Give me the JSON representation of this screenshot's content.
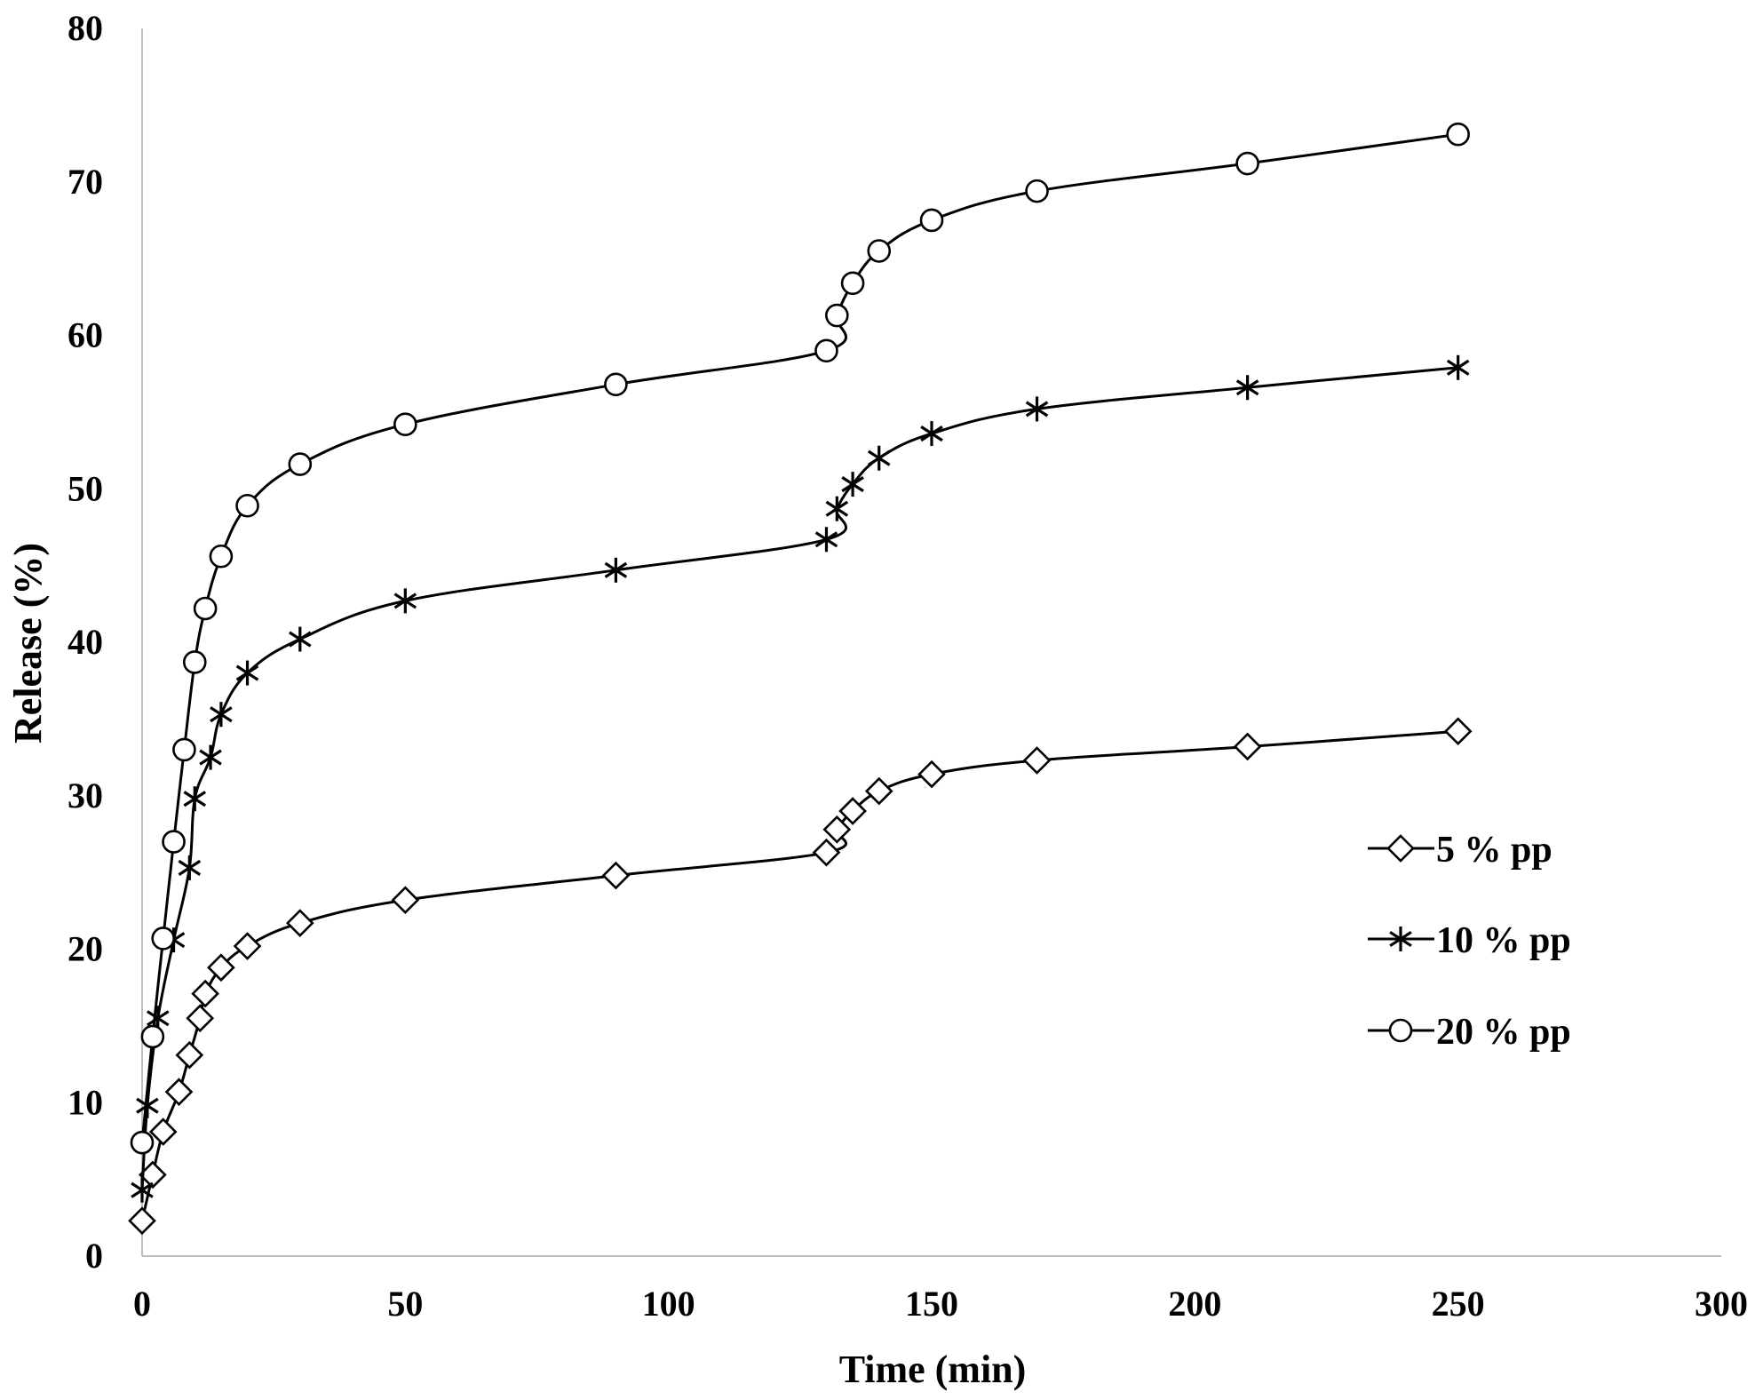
{
  "chart_data": {
    "type": "line",
    "title": "",
    "xlabel": "Time (min)",
    "ylabel": "Release (%)",
    "xlim": [
      0,
      300
    ],
    "ylim": [
      0,
      80
    ],
    "xticks": [
      "0",
      "50",
      "100",
      "150",
      "200",
      "250",
      "300"
    ],
    "yticks": [
      "0",
      "10",
      "20",
      "30",
      "40",
      "50",
      "60",
      "70",
      "80"
    ],
    "grid": false,
    "legend_position": "right",
    "series": [
      {
        "name": "5 % pp",
        "marker": "diamond",
        "color": "#000000",
        "x": [
          0,
          2,
          4,
          7,
          9,
          11,
          12,
          15,
          20,
          30,
          50,
          90,
          130,
          132,
          135,
          140,
          150,
          170,
          210,
          250
        ],
        "y": [
          2.3,
          5.3,
          8.1,
          10.7,
          13.1,
          15.5,
          17.1,
          18.8,
          20.2,
          21.7,
          23.2,
          24.8,
          26.3,
          27.8,
          29.0,
          30.3,
          31.4,
          32.3,
          33.2,
          34.2
        ]
      },
      {
        "name": "10 % pp",
        "marker": "star",
        "color": "#000000",
        "x": [
          0,
          1,
          3,
          6,
          9,
          10,
          13,
          15,
          20,
          30,
          50,
          90,
          130,
          132,
          135,
          140,
          150,
          170,
          210,
          250
        ],
        "y": [
          4.3,
          9.8,
          15.5,
          20.6,
          25.3,
          29.8,
          32.5,
          35.3,
          38.0,
          40.2,
          42.7,
          44.7,
          46.7,
          48.7,
          50.3,
          52.0,
          53.6,
          55.2,
          56.6,
          57.9
        ]
      },
      {
        "name": "20 % pp",
        "marker": "circle",
        "color": "#000000",
        "x": [
          0,
          2,
          4,
          6,
          8,
          10,
          12,
          15,
          20,
          30,
          50,
          90,
          130,
          132,
          135,
          140,
          150,
          170,
          210,
          250
        ],
        "y": [
          7.4,
          14.3,
          20.7,
          27.0,
          33.0,
          38.7,
          42.2,
          45.6,
          48.9,
          51.6,
          54.2,
          56.8,
          59.0,
          61.3,
          63.4,
          65.5,
          67.5,
          69.4,
          71.2,
          73.1
        ]
      }
    ]
  }
}
